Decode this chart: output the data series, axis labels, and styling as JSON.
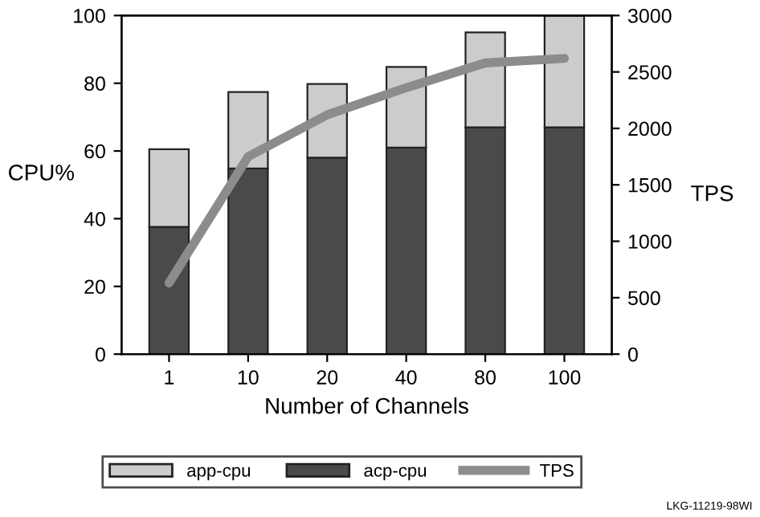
{
  "chart_data": {
    "type": "bar",
    "stacked": true,
    "xlabel": "Number of Channels",
    "ylabel": "CPU%",
    "y2label": "TPS",
    "categories": [
      "1",
      "10",
      "20",
      "40",
      "80",
      "100"
    ],
    "series": [
      {
        "name": "acp-cpu",
        "color": "#4a4a4a",
        "values": [
          37.6,
          54.8,
          58,
          61,
          67,
          67
        ]
      },
      {
        "name": "app-cpu",
        "color": "#cccccc",
        "values": [
          22.9,
          22.6,
          21.8,
          23.8,
          28,
          33
        ]
      },
      {
        "name": "TPS",
        "type": "line",
        "axis": "y2",
        "color": "#8c8c8c",
        "values": [
          630,
          1750,
          2120,
          2360,
          2580,
          2620
        ]
      }
    ],
    "ylim": [
      0,
      100
    ],
    "yticks": [
      0,
      20,
      40,
      60,
      80,
      100
    ],
    "y2lim": [
      0,
      3000
    ],
    "y2ticks": [
      0,
      500,
      1000,
      1500,
      2000,
      2500,
      3000
    ],
    "legend": "bottom",
    "grid": false,
    "annotations": [
      "LKG-11219-98WI"
    ]
  }
}
